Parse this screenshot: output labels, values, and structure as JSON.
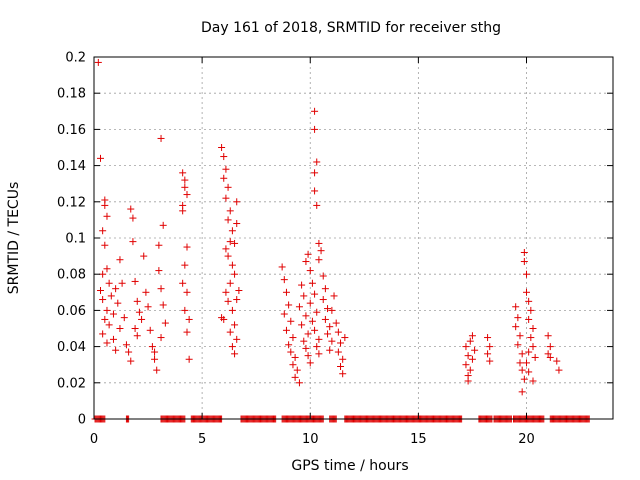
{
  "chart_data": {
    "type": "scatter",
    "title": "Day 161 of 2018, SRMTID for receiver sthg",
    "xlabel": "GPS time / hours",
    "ylabel": "SRMTID / TECUs",
    "xlim": [
      0,
      24
    ],
    "ylim": [
      0,
      0.2
    ],
    "xticks": [
      0,
      5,
      10,
      15,
      20
    ],
    "xtick_labels": [
      "0",
      "5",
      "10",
      "15",
      "20"
    ],
    "yticks": [
      0,
      0.02,
      0.04,
      0.06,
      0.08,
      0.1,
      0.12,
      0.14,
      0.16,
      0.18,
      0.2
    ],
    "ytick_labels": [
      "0",
      "0.02",
      "0.04",
      "0.06",
      "0.08",
      "0.1",
      "0.12",
      "0.14",
      "0.16",
      "0.18",
      "0.2"
    ],
    "grid": true,
    "marker": "+",
    "color": "#e00000",
    "series": [
      {
        "name": "SRMTID",
        "points": [
          [
            0.2,
            0.197
          ],
          [
            0.3,
            0.144
          ],
          [
            0.5,
            0.121
          ],
          [
            0.5,
            0.118
          ],
          [
            0.6,
            0.112
          ],
          [
            0.4,
            0.104
          ],
          [
            0.5,
            0.096
          ],
          [
            0.6,
            0.083
          ],
          [
            0.4,
            0.08
          ],
          [
            0.7,
            0.075
          ],
          [
            0.3,
            0.071
          ],
          [
            0.4,
            0.066
          ],
          [
            0.6,
            0.06
          ],
          [
            0.5,
            0.055
          ],
          [
            0.7,
            0.052
          ],
          [
            0.4,
            0.047
          ],
          [
            0.6,
            0.042
          ],
          [
            0.8,
            0.068
          ],
          [
            0.9,
            0.058
          ],
          [
            1.0,
            0.072
          ],
          [
            1.1,
            0.064
          ],
          [
            1.2,
            0.05
          ],
          [
            0.9,
            0.044
          ],
          [
            1.0,
            0.038
          ],
          [
            1.2,
            0.088
          ],
          [
            1.3,
            0.075
          ],
          [
            1.4,
            0.056
          ],
          [
            1.5,
            0.041
          ],
          [
            1.6,
            0.037
          ],
          [
            1.7,
            0.032
          ],
          [
            1.7,
            0.116
          ],
          [
            1.8,
            0.111
          ],
          [
            1.8,
            0.098
          ],
          [
            1.9,
            0.076
          ],
          [
            2.0,
            0.065
          ],
          [
            2.1,
            0.059
          ],
          [
            2.2,
            0.055
          ],
          [
            1.9,
            0.05
          ],
          [
            2.0,
            0.046
          ],
          [
            2.3,
            0.09
          ],
          [
            2.4,
            0.07
          ],
          [
            2.5,
            0.062
          ],
          [
            2.6,
            0.049
          ],
          [
            2.7,
            0.04
          ],
          [
            2.8,
            0.033
          ],
          [
            2.9,
            0.027
          ],
          [
            2.8,
            0.037
          ],
          [
            3.0,
            0.096
          ],
          [
            3.0,
            0.082
          ],
          [
            3.1,
            0.072
          ],
          [
            3.2,
            0.063
          ],
          [
            3.3,
            0.053
          ],
          [
            3.1,
            0.045
          ],
          [
            3.2,
            0.107
          ],
          [
            3.1,
            0.155
          ],
          [
            4.1,
            0.136
          ],
          [
            4.2,
            0.132
          ],
          [
            4.2,
            0.128
          ],
          [
            4.3,
            0.124
          ],
          [
            4.1,
            0.115
          ],
          [
            4.3,
            0.095
          ],
          [
            4.2,
            0.085
          ],
          [
            4.1,
            0.075
          ],
          [
            4.3,
            0.07
          ],
          [
            4.2,
            0.06
          ],
          [
            4.4,
            0.055
          ],
          [
            4.3,
            0.048
          ],
          [
            4.4,
            0.033
          ],
          [
            4.1,
            0.118
          ],
          [
            5.9,
            0.15
          ],
          [
            6.0,
            0.145
          ],
          [
            6.1,
            0.138
          ],
          [
            6.0,
            0.133
          ],
          [
            6.2,
            0.128
          ],
          [
            6.1,
            0.122
          ],
          [
            6.3,
            0.115
          ],
          [
            6.2,
            0.11
          ],
          [
            6.4,
            0.104
          ],
          [
            6.3,
            0.098
          ],
          [
            6.1,
            0.094
          ],
          [
            6.2,
            0.09
          ],
          [
            6.4,
            0.085
          ],
          [
            6.5,
            0.08
          ],
          [
            6.3,
            0.075
          ],
          [
            6.1,
            0.07
          ],
          [
            6.2,
            0.065
          ],
          [
            6.4,
            0.06
          ],
          [
            6.0,
            0.055
          ],
          [
            6.5,
            0.052
          ],
          [
            6.3,
            0.048
          ],
          [
            6.6,
            0.044
          ],
          [
            6.4,
            0.04
          ],
          [
            6.5,
            0.036
          ],
          [
            6.6,
            0.12
          ],
          [
            6.6,
            0.108
          ],
          [
            6.5,
            0.097
          ],
          [
            6.7,
            0.071
          ],
          [
            6.6,
            0.066
          ],
          [
            5.9,
            0.056
          ],
          [
            8.7,
            0.084
          ],
          [
            8.8,
            0.077
          ],
          [
            8.9,
            0.07
          ],
          [
            9.0,
            0.063
          ],
          [
            8.8,
            0.058
          ],
          [
            9.1,
            0.054
          ],
          [
            8.9,
            0.049
          ],
          [
            9.2,
            0.045
          ],
          [
            9.0,
            0.041
          ],
          [
            9.1,
            0.037
          ],
          [
            9.3,
            0.034
          ],
          [
            9.2,
            0.03
          ],
          [
            9.4,
            0.027
          ],
          [
            9.3,
            0.023
          ],
          [
            9.5,
            0.02
          ],
          [
            9.6,
            0.074
          ],
          [
            9.7,
            0.068
          ],
          [
            9.5,
            0.062
          ],
          [
            9.8,
            0.057
          ],
          [
            9.6,
            0.052
          ],
          [
            9.9,
            0.047
          ],
          [
            9.7,
            0.043
          ],
          [
            9.8,
            0.039
          ],
          [
            9.9,
            0.035
          ],
          [
            10.0,
            0.031
          ],
          [
            9.8,
            0.087
          ],
          [
            9.9,
            0.091
          ],
          [
            10.0,
            0.082
          ],
          [
            10.1,
            0.075
          ],
          [
            10.2,
            0.069
          ],
          [
            10.0,
            0.064
          ],
          [
            10.3,
            0.059
          ],
          [
            10.1,
            0.054
          ],
          [
            10.2,
            0.049
          ],
          [
            10.4,
            0.044
          ],
          [
            10.3,
            0.04
          ],
          [
            10.4,
            0.036
          ],
          [
            10.2,
            0.17
          ],
          [
            10.2,
            0.16
          ],
          [
            10.3,
            0.142
          ],
          [
            10.2,
            0.136
          ],
          [
            10.2,
            0.126
          ],
          [
            10.3,
            0.118
          ],
          [
            10.4,
            0.097
          ],
          [
            10.5,
            0.093
          ],
          [
            10.4,
            0.088
          ],
          [
            10.6,
            0.079
          ],
          [
            10.7,
            0.072
          ],
          [
            10.6,
            0.066
          ],
          [
            10.8,
            0.061
          ],
          [
            10.7,
            0.055
          ],
          [
            10.9,
            0.051
          ],
          [
            10.8,
            0.047
          ],
          [
            11.0,
            0.043
          ],
          [
            10.9,
            0.038
          ],
          [
            11.1,
            0.068
          ],
          [
            11.0,
            0.06
          ],
          [
            11.2,
            0.053
          ],
          [
            11.3,
            0.048
          ],
          [
            11.4,
            0.042
          ],
          [
            11.3,
            0.037
          ],
          [
            11.5,
            0.033
          ],
          [
            11.4,
            0.029
          ],
          [
            11.6,
            0.045
          ],
          [
            11.5,
            0.025
          ],
          [
            17.2,
            0.04
          ],
          [
            17.3,
            0.035
          ],
          [
            17.2,
            0.03
          ],
          [
            17.4,
            0.027
          ],
          [
            17.3,
            0.024
          ],
          [
            17.5,
            0.046
          ],
          [
            17.4,
            0.043
          ],
          [
            17.6,
            0.038
          ],
          [
            17.5,
            0.033
          ],
          [
            17.3,
            0.021
          ],
          [
            18.2,
            0.045
          ],
          [
            18.3,
            0.04
          ],
          [
            18.2,
            0.036
          ],
          [
            18.3,
            0.032
          ],
          [
            19.5,
            0.062
          ],
          [
            19.6,
            0.056
          ],
          [
            19.5,
            0.051
          ],
          [
            19.7,
            0.046
          ],
          [
            19.6,
            0.041
          ],
          [
            19.8,
            0.036
          ],
          [
            19.7,
            0.031
          ],
          [
            19.8,
            0.027
          ],
          [
            19.9,
            0.022
          ],
          [
            19.8,
            0.015
          ],
          [
            19.9,
            0.092
          ],
          [
            19.9,
            0.087
          ],
          [
            20.0,
            0.08
          ],
          [
            20.0,
            0.07
          ],
          [
            20.1,
            0.065
          ],
          [
            20.2,
            0.06
          ],
          [
            20.1,
            0.055
          ],
          [
            20.3,
            0.05
          ],
          [
            20.2,
            0.045
          ],
          [
            20.3,
            0.04
          ],
          [
            20.1,
            0.037
          ],
          [
            20.4,
            0.034
          ],
          [
            20.0,
            0.031
          ],
          [
            20.1,
            0.026
          ],
          [
            20.3,
            0.021
          ],
          [
            21.0,
            0.046
          ],
          [
            21.1,
            0.04
          ],
          [
            21.0,
            0.036
          ],
          [
            21.1,
            0.034
          ],
          [
            21.4,
            0.032
          ],
          [
            21.5,
            0.027
          ]
        ]
      }
    ],
    "zero_runs": [
      [
        0.05,
        0.5
      ],
      [
        1.5,
        1.6
      ],
      [
        3.1,
        4.2
      ],
      [
        4.5,
        5.9
      ],
      [
        6.8,
        8.4
      ],
      [
        8.7,
        10.6
      ],
      [
        10.9,
        11.2
      ],
      [
        11.6,
        17.0
      ],
      [
        17.8,
        18.4
      ],
      [
        18.5,
        19.3
      ],
      [
        19.4,
        20.8
      ],
      [
        21.1,
        22.9
      ]
    ]
  }
}
